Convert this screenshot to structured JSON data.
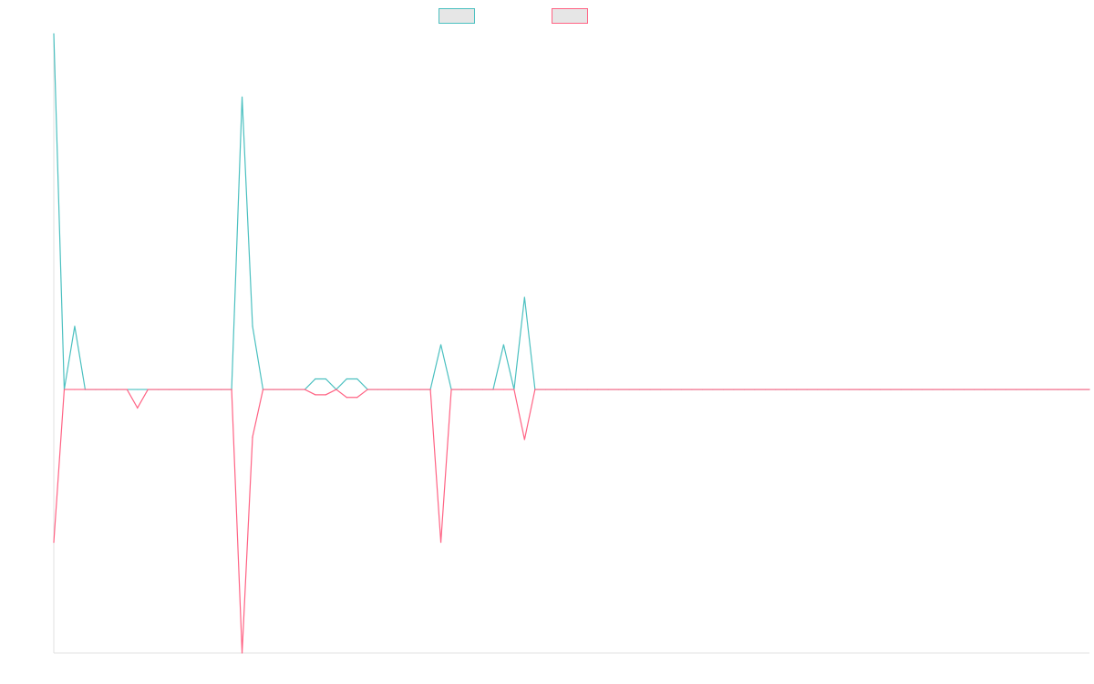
{
  "chart_data": {
    "type": "line",
    "title": "",
    "xlabel": "",
    "ylabel": "",
    "grid": false,
    "legend_position": "top-center",
    "x_count": 100,
    "ylim": [
      -100,
      135
    ],
    "series": [
      {
        "color": "#4bc0c0",
        "legend_fill": "#e6e6e6",
        "values": [
          135,
          0,
          24,
          0,
          0,
          0,
          0,
          0,
          0,
          0,
          0,
          0,
          0,
          0,
          0,
          0,
          0,
          0,
          111,
          24,
          0,
          0,
          0,
          0,
          0,
          4,
          4,
          0,
          4,
          4,
          0,
          0,
          0,
          0,
          0,
          0,
          0,
          17,
          0,
          0,
          0,
          0,
          0,
          17,
          0,
          35,
          0,
          0,
          0,
          0,
          0,
          0,
          0,
          0,
          0,
          0,
          0,
          0,
          0,
          0,
          0,
          0,
          0,
          0,
          0,
          0,
          0,
          0,
          0,
          0,
          0,
          0,
          0,
          0,
          0,
          0,
          0,
          0,
          0,
          0,
          0,
          0,
          0,
          0,
          0,
          0,
          0,
          0,
          0,
          0,
          0,
          0,
          0,
          0,
          0,
          0,
          0,
          0,
          0,
          0
        ]
      },
      {
        "color": "#ff6384",
        "legend_fill": "#e6e6e6",
        "values": [
          -58,
          0,
          0,
          0,
          0,
          0,
          0,
          0,
          -7,
          0,
          0,
          0,
          0,
          0,
          0,
          0,
          0,
          0,
          -100,
          -18,
          0,
          0,
          0,
          0,
          0,
          -2,
          -2,
          0,
          -3,
          -3,
          0,
          0,
          0,
          0,
          0,
          0,
          0,
          -58,
          0,
          0,
          0,
          0,
          0,
          0,
          0,
          -19,
          0,
          0,
          0,
          0,
          0,
          0,
          0,
          0,
          0,
          0,
          0,
          0,
          0,
          0,
          0,
          0,
          0,
          0,
          0,
          0,
          0,
          0,
          0,
          0,
          0,
          0,
          0,
          0,
          0,
          0,
          0,
          0,
          0,
          0,
          0,
          0,
          0,
          0,
          0,
          0,
          0,
          0,
          0,
          0,
          0,
          0,
          0,
          0,
          0,
          0,
          0,
          0,
          0,
          0
        ]
      }
    ]
  }
}
